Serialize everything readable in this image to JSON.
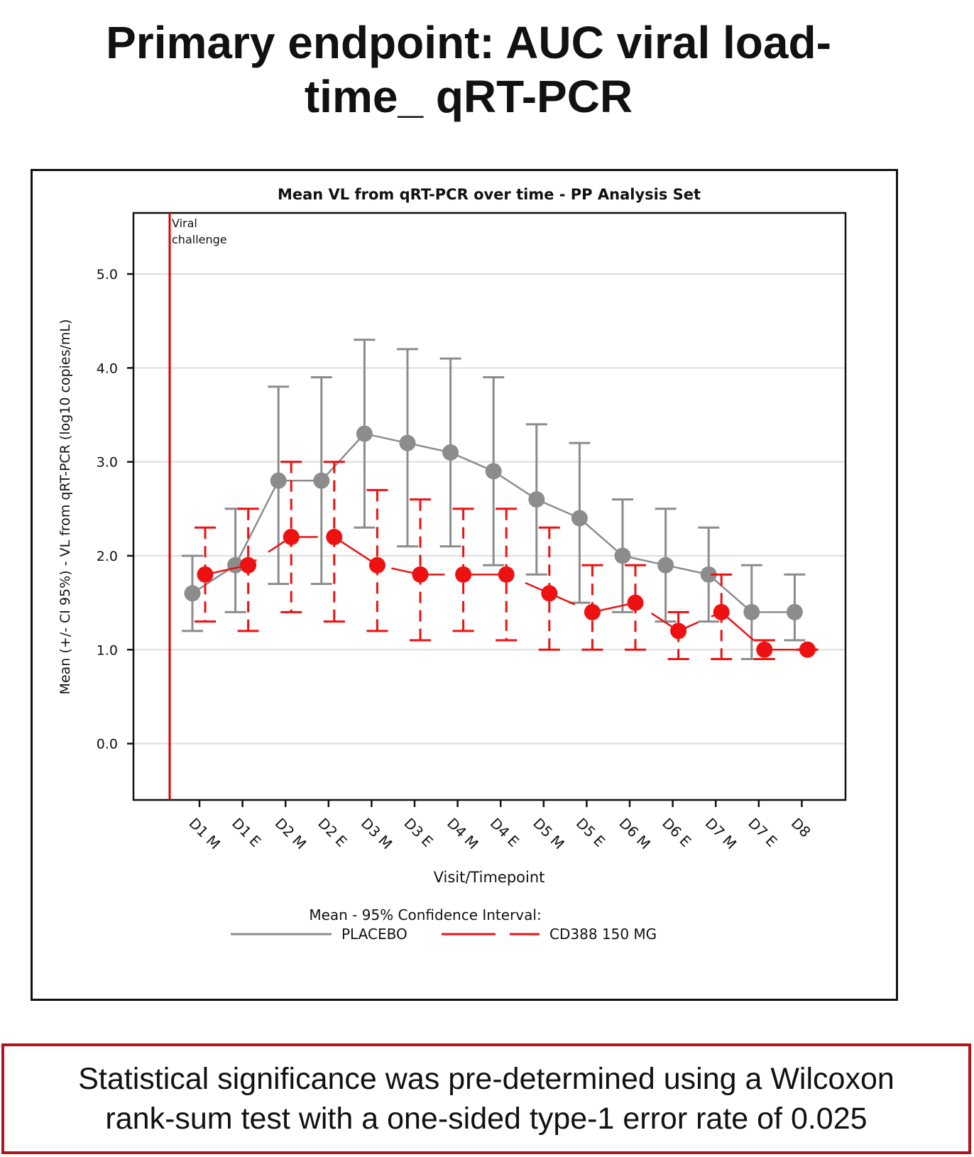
{
  "slide": {
    "title_line1": "Primary endpoint: AUC viral load-",
    "title_line2": "time_ qRT-PCR"
  },
  "note": {
    "line1": "Statistical significance was pre-determined using a Wilcoxon",
    "line2": "rank-sum test with a one-sided type-1 error rate of 0.025"
  },
  "colors": {
    "placebo": "#8c8c8c",
    "treatment": "#ee1111",
    "challenge_line": "#dd0000"
  },
  "chart_data": {
    "type": "line",
    "title": "Mean VL from qRT-PCR over time - PP Analysis Set",
    "xlabel": "Visit/Timepoint",
    "ylabel": "Mean (+/- CI 95%) - VL from qRT-PCR (log10 copies/mL)",
    "categories": [
      "D1 M",
      "D1 E",
      "D2 M",
      "D2 E",
      "D3 M",
      "D3 E",
      "D4 M",
      "D4 E",
      "D5 M",
      "D5 E",
      "D6 M",
      "D6 E",
      "D7 M",
      "D7 E",
      "D8"
    ],
    "ylim": [
      -0.6,
      5.65
    ],
    "yticks": [
      0.0,
      1.0,
      2.0,
      3.0,
      4.0,
      5.0
    ],
    "ytick_labels": [
      "0.0",
      "1.0",
      "2.0",
      "3.0",
      "4.0",
      "5.0"
    ],
    "grid": true,
    "annotation": {
      "line1": "Viral",
      "line2": "challenge",
      "x_category_offset": -0.6
    },
    "legend": {
      "title": "Mean - 95% Confidence Interval:",
      "placement": "bottom-center"
    },
    "series": [
      {
        "name": "PLACEBO",
        "style": "solid",
        "mean": [
          1.6,
          1.9,
          2.8,
          2.8,
          3.3,
          3.2,
          3.1,
          2.9,
          2.6,
          2.4,
          2.0,
          1.9,
          1.8,
          1.4,
          1.4
        ],
        "lower": [
          1.2,
          1.4,
          1.7,
          1.7,
          2.3,
          2.1,
          2.1,
          1.9,
          1.8,
          1.5,
          1.4,
          1.3,
          1.3,
          0.9,
          1.1
        ],
        "upper": [
          2.0,
          2.5,
          3.8,
          3.9,
          4.3,
          4.2,
          4.1,
          3.9,
          3.4,
          3.2,
          2.6,
          2.5,
          2.3,
          1.9,
          1.8
        ]
      },
      {
        "name": "CD388 150 MG",
        "style": "dashed",
        "mean": [
          1.8,
          1.9,
          2.2,
          2.2,
          1.9,
          1.8,
          1.8,
          1.8,
          1.6,
          1.4,
          1.5,
          1.2,
          1.4,
          1.0,
          1.0
        ],
        "lower": [
          1.3,
          1.2,
          1.4,
          1.3,
          1.2,
          1.1,
          1.2,
          1.1,
          1.0,
          1.0,
          1.0,
          0.9,
          0.9,
          0.9,
          1.0
        ],
        "upper": [
          2.3,
          2.5,
          3.0,
          3.0,
          2.7,
          2.6,
          2.5,
          2.5,
          2.3,
          1.9,
          1.9,
          1.4,
          1.8,
          1.1,
          1.0
        ]
      }
    ]
  }
}
